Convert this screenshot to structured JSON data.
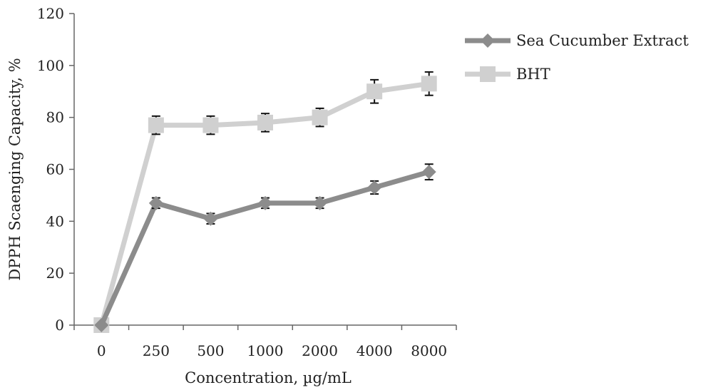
{
  "chart_data": {
    "type": "line",
    "title": "",
    "xlabel": "Concentration, µg/mL",
    "ylabel": "DPPH Scaenging Capacity, %",
    "categories": [
      "0",
      "250",
      "500",
      "1000",
      "2000",
      "4000",
      "8000"
    ],
    "ylim": [
      0,
      120
    ],
    "yticks": [
      "0",
      "20",
      "40",
      "60",
      "80",
      "100",
      "120"
    ],
    "grid": false,
    "legend_position": "top-right",
    "series": [
      {
        "name": "Sea Cucumber Extract",
        "values": [
          0,
          47,
          41,
          47,
          47,
          53,
          59
        ],
        "errors": [
          0,
          2,
          2,
          2,
          2,
          2.5,
          3
        ],
        "color": "#8c8c8c",
        "marker": "diamond"
      },
      {
        "name": "BHT",
        "values": [
          0,
          77,
          77,
          78,
          80,
          90,
          93
        ],
        "errors": [
          0,
          3.5,
          3.5,
          3.5,
          3.5,
          4.5,
          4.5
        ],
        "color": "#d0d0d0",
        "marker": "square"
      }
    ]
  }
}
